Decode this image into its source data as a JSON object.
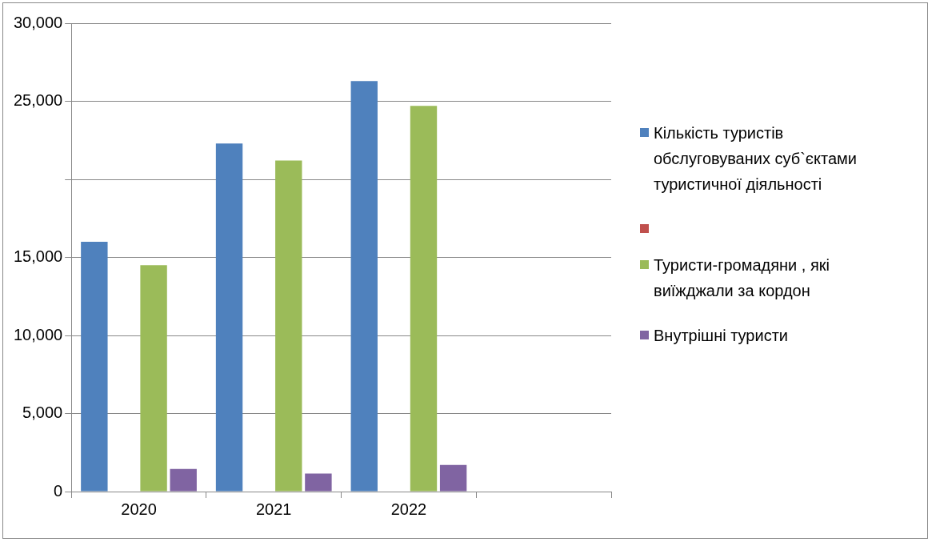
{
  "chart_data": {
    "type": "bar",
    "categories": [
      "2020",
      "2021",
      "2022",
      null
    ],
    "series": [
      {
        "name": "Кількість туристів обслуговуваних суб`єктами туристичної діяльності",
        "color": "#4f81bd",
        "values": [
          16000,
          22300,
          26300,
          null
        ]
      },
      {
        "color": "#c0504d",
        "values": [
          null,
          null,
          null,
          null
        ]
      },
      {
        "name": "Туристи-громадяни , які виїжджали за кордон",
        "color": "#9bbb59",
        "values": [
          14500,
          21200,
          24700,
          null
        ]
      },
      {
        "name": "Внутрішні туристи",
        "color": "#8064a2",
        "values": [
          1450,
          1150,
          1700,
          null
        ]
      }
    ],
    "ylim": [
      0,
      30000
    ],
    "yticks": [
      {
        "value": 0,
        "label": "0"
      },
      {
        "value": 5000,
        "label": "5,000"
      },
      {
        "value": 10000,
        "label": "10,000"
      },
      {
        "value": 15000,
        "label": "15,000"
      },
      {
        "value": 20000,
        "label": null
      },
      {
        "value": 25000,
        "label": "25,000"
      },
      {
        "value": 30000,
        "label": "30,000"
      }
    ],
    "grid": "y",
    "legend": "right"
  }
}
